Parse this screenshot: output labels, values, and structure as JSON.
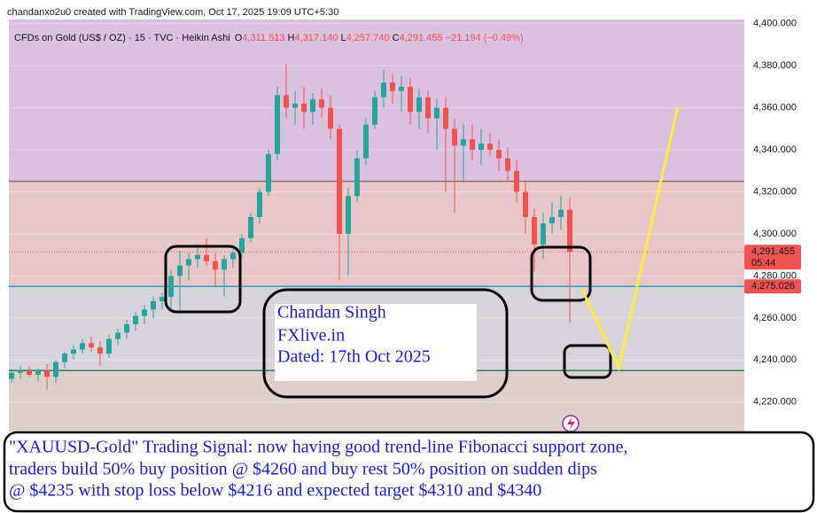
{
  "header": "chandanxo2u0 created with TradingView.com, Oct 17, 2025 19:09 UTC+5:30",
  "chart_data": {
    "type": "candlestick",
    "symbol": "CFDs on Gold (US$ / OZ) · 15 · TVC · Heikin Ashi",
    "ohlc_labels": [
      {
        "prefix": "O",
        "text": "4,311.513"
      },
      {
        "prefix": "H",
        "text": "4,317.140"
      },
      {
        "prefix": "L",
        "text": "4,257.740"
      },
      {
        "prefix": "C",
        "text": "4,291.455"
      }
    ],
    "change": "−21.194 (−0.49%)",
    "up_color": "#26a69a",
    "down_color": "#ef5350",
    "ylim": [
      4206,
      4402
    ],
    "yticks": [
      {
        "value": 4220,
        "label": "4,220.000"
      },
      {
        "value": 4240,
        "label": "4,240.000"
      },
      {
        "value": 4260,
        "label": "4,260.000"
      },
      {
        "value": 4280,
        "label": "4,280.000"
      },
      {
        "value": 4300,
        "label": "4,300.000"
      },
      {
        "value": 4320,
        "label": "4,320.000"
      },
      {
        "value": 4340,
        "label": "4,340.000"
      },
      {
        "value": 4360,
        "label": "4,360.000"
      },
      {
        "value": 4380,
        "label": "4,380.000"
      },
      {
        "value": 4400,
        "label": "4,400.000"
      }
    ],
    "levels": [
      {
        "value": 4325,
        "color": "#8d6e63"
      },
      {
        "value": 4275,
        "color": "#26a3b8"
      },
      {
        "value": 4235,
        "color": "#2e7d5b"
      }
    ],
    "zone_colors": [
      "#dcc0e0",
      "#e8c7cb",
      "#d8d3da",
      "#ddd0cc"
    ],
    "price_tags": [
      {
        "value": 4291.455,
        "label": "4,291.455",
        "time": "05:44"
      },
      {
        "value": 4275.026,
        "label": "4,275.026"
      }
    ],
    "ohlc": [
      [
        4231,
        4236,
        4229,
        4234
      ],
      [
        4234,
        4237,
        4231,
        4235
      ],
      [
        4235,
        4237,
        4232,
        4233
      ],
      [
        4233,
        4236,
        4230,
        4235
      ],
      [
        4235,
        4238,
        4226,
        4232
      ],
      [
        4232,
        4240,
        4229,
        4239
      ],
      [
        4239,
        4244,
        4236,
        4243
      ],
      [
        4243,
        4247,
        4240,
        4245
      ],
      [
        4245,
        4250,
        4243,
        4248
      ],
      [
        4248,
        4251,
        4244,
        4246
      ],
      [
        4246,
        4249,
        4237,
        4243
      ],
      [
        4243,
        4252,
        4241,
        4250
      ],
      [
        4250,
        4255,
        4247,
        4253
      ],
      [
        4253,
        4259,
        4250,
        4257
      ],
      [
        4257,
        4263,
        4254,
        4261
      ],
      [
        4261,
        4266,
        4257,
        4264
      ],
      [
        4264,
        4270,
        4260,
        4268
      ],
      [
        4268,
        4272,
        4264,
        4270
      ],
      [
        4270,
        4283,
        4264,
        4280
      ],
      [
        4280,
        4292,
        4262,
        4285
      ],
      [
        4285,
        4291,
        4278,
        4288
      ],
      [
        4288,
        4295,
        4284,
        4290
      ],
      [
        4290,
        4298,
        4285,
        4287
      ],
      [
        4287,
        4291,
        4275,
        4283
      ],
      [
        4283,
        4290,
        4270,
        4288
      ],
      [
        4288,
        4293,
        4284,
        4291
      ],
      [
        4291,
        4300,
        4289,
        4298
      ],
      [
        4298,
        4310,
        4296,
        4308
      ],
      [
        4308,
        4322,
        4305,
        4320
      ],
      [
        4320,
        4340,
        4318,
        4338
      ],
      [
        4338,
        4370,
        4335,
        4366
      ],
      [
        4366,
        4381,
        4355,
        4360
      ],
      [
        4360,
        4368,
        4352,
        4362
      ],
      [
        4362,
        4370,
        4350,
        4358
      ],
      [
        4358,
        4367,
        4352,
        4364
      ],
      [
        4364,
        4369,
        4355,
        4360
      ],
      [
        4360,
        4366,
        4345,
        4350
      ],
      [
        4350,
        4352,
        4278,
        4300
      ],
      [
        4300,
        4322,
        4280,
        4318
      ],
      [
        4318,
        4340,
        4315,
        4336
      ],
      [
        4336,
        4355,
        4333,
        4352
      ],
      [
        4352,
        4368,
        4350,
        4365
      ],
      [
        4365,
        4378,
        4360,
        4372
      ],
      [
        4372,
        4376,
        4362,
        4368
      ],
      [
        4368,
        4375,
        4358,
        4370
      ],
      [
        4370,
        4374,
        4352,
        4358
      ],
      [
        4358,
        4369,
        4350,
        4365
      ],
      [
        4365,
        4368,
        4348,
        4355
      ],
      [
        4355,
        4364,
        4340,
        4360
      ],
      [
        4360,
        4365,
        4320,
        4350
      ],
      [
        4350,
        4355,
        4310,
        4342
      ],
      [
        4342,
        4352,
        4325,
        4345
      ],
      [
        4345,
        4352,
        4335,
        4340
      ],
      [
        4340,
        4350,
        4333,
        4343
      ],
      [
        4343,
        4348,
        4337,
        4340
      ],
      [
        4340,
        4345,
        4330,
        4336
      ],
      [
        4336,
        4341,
        4325,
        4330
      ],
      [
        4330,
        4335,
        4315,
        4320
      ],
      [
        4320,
        4325,
        4300,
        4308
      ],
      [
        4308,
        4312,
        4282,
        4295
      ],
      [
        4295,
        4310,
        4288,
        4305
      ],
      [
        4305,
        4315,
        4300,
        4308
      ],
      [
        4308,
        4318,
        4302,
        4311.513
      ],
      [
        4311.513,
        4317.14,
        4257.74,
        4291.455
      ]
    ]
  },
  "note_box": {
    "lines": [
      "Chandan Singh",
      "FXlive.in",
      "Dated: 17th Oct 2025"
    ]
  },
  "signal": {
    "lines": [
      "\"XAUUSD-Gold\" Trading Signal: now having good trend-line Fibonacci support zone,",
      "traders build 50% buy position @ $4260 and buy rest 50% position on sudden dips",
      "@ $4235 with stop loss below $4216 and expected target $4310 and $4340"
    ]
  }
}
